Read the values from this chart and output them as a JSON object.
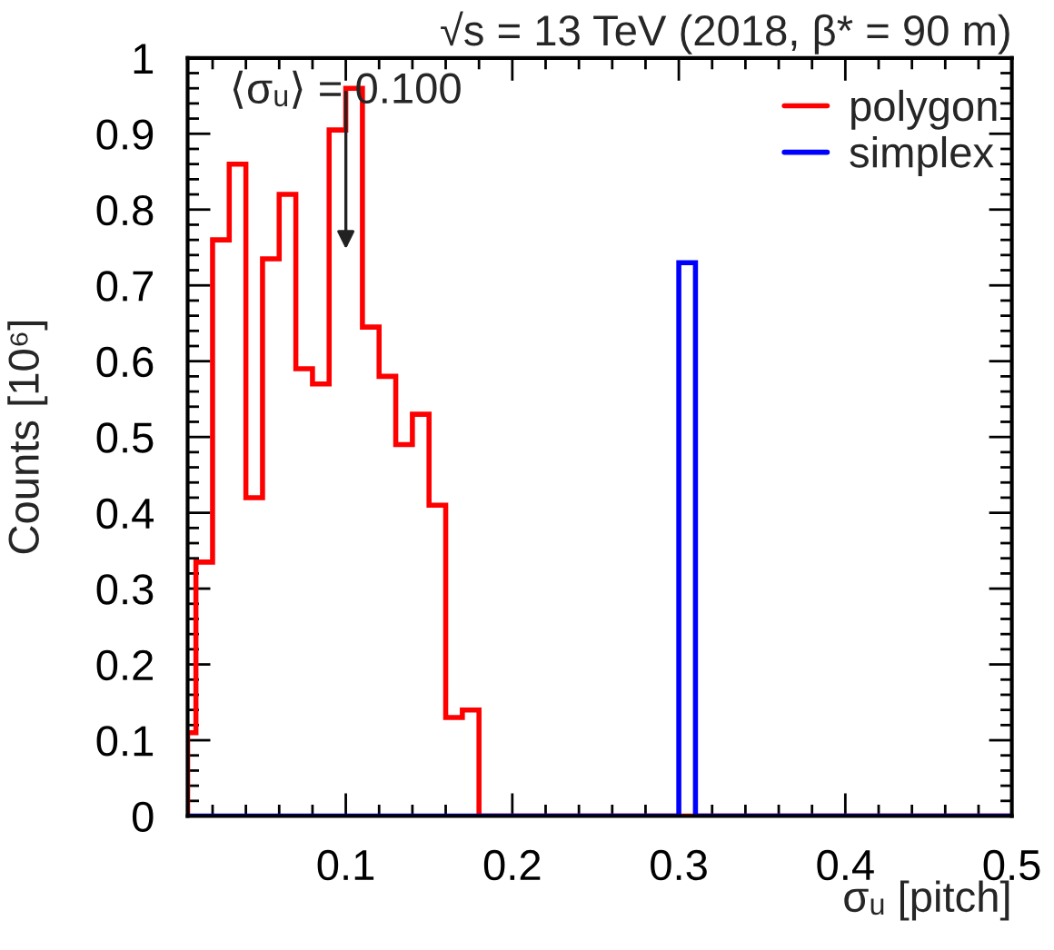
{
  "chart_data": {
    "type": "histogram",
    "title": "√s = 13 TeV (2018, β* = 90 m)",
    "xlabel": "σᵤ [pitch]",
    "ylabel": "Counts [10⁶]",
    "bins": [
      0.005,
      0.01,
      0.02,
      0.03,
      0.04,
      0.05,
      0.06,
      0.07,
      0.08,
      0.09,
      0.1,
      0.11,
      0.12,
      0.13,
      0.14,
      0.15,
      0.16,
      0.17,
      0.18,
      0.19,
      0.2,
      0.21,
      0.22,
      0.23,
      0.24,
      0.25,
      0.26,
      0.27,
      0.28,
      0.29,
      0.3,
      0.31,
      0.32,
      0.33,
      0.34,
      0.35,
      0.36,
      0.37,
      0.38,
      0.39,
      0.4,
      0.41,
      0.42,
      0.43,
      0.44,
      0.45,
      0.46,
      0.47,
      0.48,
      0.49,
      0.5
    ],
    "series": [
      {
        "name": "polygon",
        "color": "#ff0000",
        "values": [
          0.11,
          0.335,
          0.76,
          0.86,
          0.42,
          0.735,
          0.82,
          0.59,
          0.57,
          0.905,
          0.96,
          0.645,
          0.58,
          0.49,
          0.53,
          0.41,
          0.13,
          0.14,
          0,
          0,
          0,
          0,
          0,
          0,
          0,
          0,
          0,
          0,
          0,
          0,
          0,
          0,
          0,
          0,
          0,
          0,
          0,
          0,
          0,
          0,
          0,
          0,
          0,
          0,
          0,
          0,
          0,
          0,
          0,
          0
        ]
      },
      {
        "name": "simplex",
        "color": "#0000ff",
        "values": [
          0,
          0,
          0,
          0,
          0,
          0,
          0,
          0,
          0,
          0,
          0,
          0,
          0,
          0,
          0,
          0,
          0,
          0,
          0,
          0,
          0,
          0,
          0,
          0,
          0,
          0,
          0,
          0,
          0,
          0,
          0.73,
          0,
          0,
          0,
          0,
          0,
          0,
          0,
          0,
          0,
          0,
          0,
          0,
          0,
          0,
          0,
          0,
          0,
          0,
          0
        ]
      }
    ],
    "xlim": [
      0.005,
      0.5
    ],
    "ylim": [
      0,
      1
    ],
    "xticks": [
      0.1,
      0.2,
      0.3,
      0.4,
      0.5
    ],
    "yticks": [
      0,
      0.1,
      0.2,
      0.3,
      0.4,
      0.5,
      0.6,
      0.7,
      0.8,
      0.9,
      1
    ],
    "legend": "top right",
    "annotations": [
      "⟨σᵤ⟩ = 0.100"
    ]
  }
}
